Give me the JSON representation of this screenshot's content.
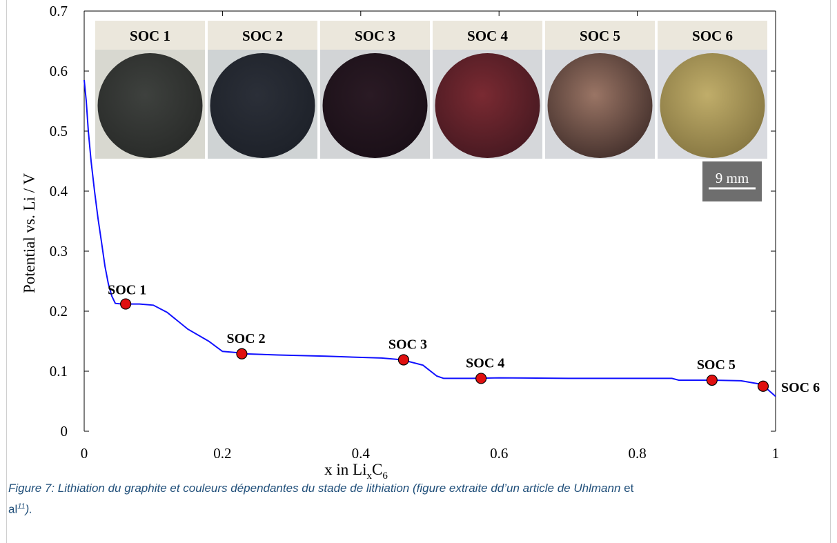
{
  "chart_data": {
    "type": "line",
    "xlabel_main": "x in Li",
    "xlabel_sub1": "x",
    "xlabel_mid": "C",
    "xlabel_sub2": "6",
    "ylabel": "Potential vs. Li / V",
    "xlim": [
      0,
      1
    ],
    "ylim": [
      0,
      0.7
    ],
    "xticks": [
      "0",
      "0.2",
      "0.4",
      "0.6",
      "0.8",
      "1"
    ],
    "yticks": [
      "0",
      "0.1",
      "0.2",
      "0.3",
      "0.4",
      "0.5",
      "0.6",
      "0.7"
    ],
    "line_color": "#1010ff",
    "marker_color": "#e01010",
    "curve": [
      [
        0.0,
        0.585
      ],
      [
        0.003,
        0.55
      ],
      [
        0.006,
        0.5
      ],
      [
        0.01,
        0.45
      ],
      [
        0.015,
        0.4
      ],
      [
        0.02,
        0.355
      ],
      [
        0.025,
        0.315
      ],
      [
        0.03,
        0.275
      ],
      [
        0.035,
        0.245
      ],
      [
        0.04,
        0.225
      ],
      [
        0.045,
        0.213
      ],
      [
        0.055,
        0.212
      ],
      [
        0.08,
        0.212
      ],
      [
        0.1,
        0.21
      ],
      [
        0.12,
        0.198
      ],
      [
        0.15,
        0.17
      ],
      [
        0.18,
        0.15
      ],
      [
        0.2,
        0.133
      ],
      [
        0.22,
        0.131
      ],
      [
        0.23,
        0.129
      ],
      [
        0.28,
        0.127
      ],
      [
        0.35,
        0.125
      ],
      [
        0.43,
        0.122
      ],
      [
        0.46,
        0.119
      ],
      [
        0.49,
        0.11
      ],
      [
        0.51,
        0.092
      ],
      [
        0.52,
        0.088
      ],
      [
        0.56,
        0.088
      ],
      [
        0.6,
        0.089
      ],
      [
        0.7,
        0.088
      ],
      [
        0.8,
        0.088
      ],
      [
        0.85,
        0.088
      ],
      [
        0.86,
        0.085
      ],
      [
        0.91,
        0.085
      ],
      [
        0.95,
        0.084
      ],
      [
        0.98,
        0.078
      ],
      [
        0.99,
        0.068
      ],
      [
        1.0,
        0.058
      ]
    ],
    "points": [
      {
        "label": "SOC 1",
        "x": 0.06,
        "y": 0.212
      },
      {
        "label": "SOC 2",
        "x": 0.228,
        "y": 0.129
      },
      {
        "label": "SOC 3",
        "x": 0.462,
        "y": 0.119
      },
      {
        "label": "SOC 4",
        "x": 0.574,
        "y": 0.088
      },
      {
        "label": "SOC 5",
        "x": 0.908,
        "y": 0.085
      },
      {
        "label": "SOC 6",
        "x": 0.982,
        "y": 0.075
      }
    ],
    "photos": [
      {
        "label": "SOC 1",
        "bg": "#d8d8d0",
        "disc": "#3e413e",
        "rim": "#2a2c2a"
      },
      {
        "label": "SOC 2",
        "bg": "#cfd3d4",
        "disc": "#2b2f38",
        "rim": "#1e222a"
      },
      {
        "label": "SOC 3",
        "bg": "#d2d4d6",
        "disc": "#2a1a24",
        "rim": "#1b1018"
      },
      {
        "label": "SOC 4",
        "bg": "#d5d7da",
        "disc": "#7a2a32",
        "rim": "#4a1a22"
      },
      {
        "label": "SOC 5",
        "bg": "#d6d8dc",
        "disc": "#9a7565",
        "rim": "#4a3530"
      },
      {
        "label": "SOC 6",
        "bg": "#d9dbe0",
        "disc": "#c0ad6a",
        "rim": "#8a7a44"
      }
    ],
    "scale_bar": "9 mm"
  },
  "caption": {
    "italic": "Figure 7: Lithiation du graphite et couleurs dépendantes du stade de lithiation (figure extraite dd’un article de Uhlmann ",
    "et": "et",
    "al": "al",
    "ref": "11",
    "end": ")."
  }
}
